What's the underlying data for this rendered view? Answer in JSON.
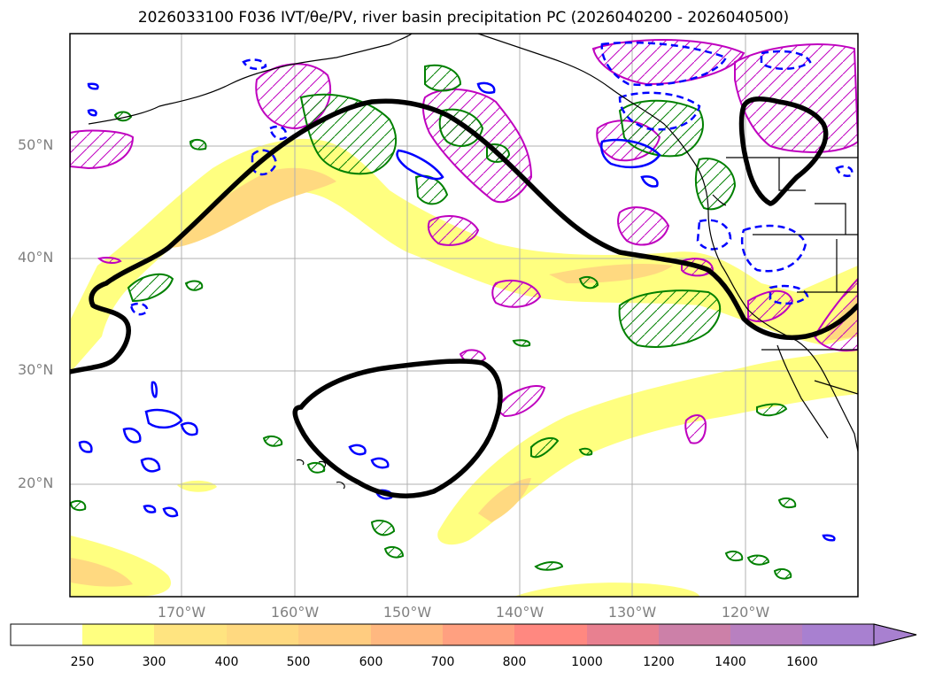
{
  "title": "2026033100 F036 IVT/θe/PV, river basin precipitation PC (2026040200 - 2026040500)",
  "map": {
    "projection": "PlateCarree",
    "extent": {
      "lon_min": -180,
      "lon_max": -110,
      "lat_min": 10,
      "lat_max": 60
    },
    "lat_ticks": [
      {
        "value": 50,
        "label": "50°N"
      },
      {
        "value": 40,
        "label": "40°N"
      },
      {
        "value": 30,
        "label": "30°N"
      },
      {
        "value": 20,
        "label": "20°N"
      }
    ],
    "lon_ticks": [
      {
        "value": -170,
        "label": "170°W"
      },
      {
        "value": -160,
        "label": "160°W"
      },
      {
        "value": -150,
        "label": "150°W"
      },
      {
        "value": -140,
        "label": "140°W"
      },
      {
        "value": -130,
        "label": "130°W"
      },
      {
        "value": -120,
        "label": "120°W"
      }
    ],
    "gridlines": true,
    "colors": {
      "ivt_light": "#ffff80",
      "ivt_medium": "#ffd980",
      "pc_contour": "#000000",
      "green_contour": "#008000",
      "blue_contour": "#0000ff",
      "magenta_contour": "#bf00bf",
      "coastline": "#000000",
      "grid": "#b0b0b0",
      "tick_label": "#808080"
    }
  },
  "colorbar": {
    "levels": [
      "250",
      "300",
      "400",
      "500",
      "600",
      "700",
      "800",
      "1000",
      "1200",
      "1400",
      "1600"
    ],
    "colors": [
      "#ffffff",
      "#ffff80",
      "#ffe480",
      "#ffd980",
      "#ffcc80",
      "#ffb880",
      "#ffa080",
      "#ff8880",
      "#e88090",
      "#cc80a8",
      "#b880c0",
      "#a880d0"
    ],
    "extend": "max"
  }
}
